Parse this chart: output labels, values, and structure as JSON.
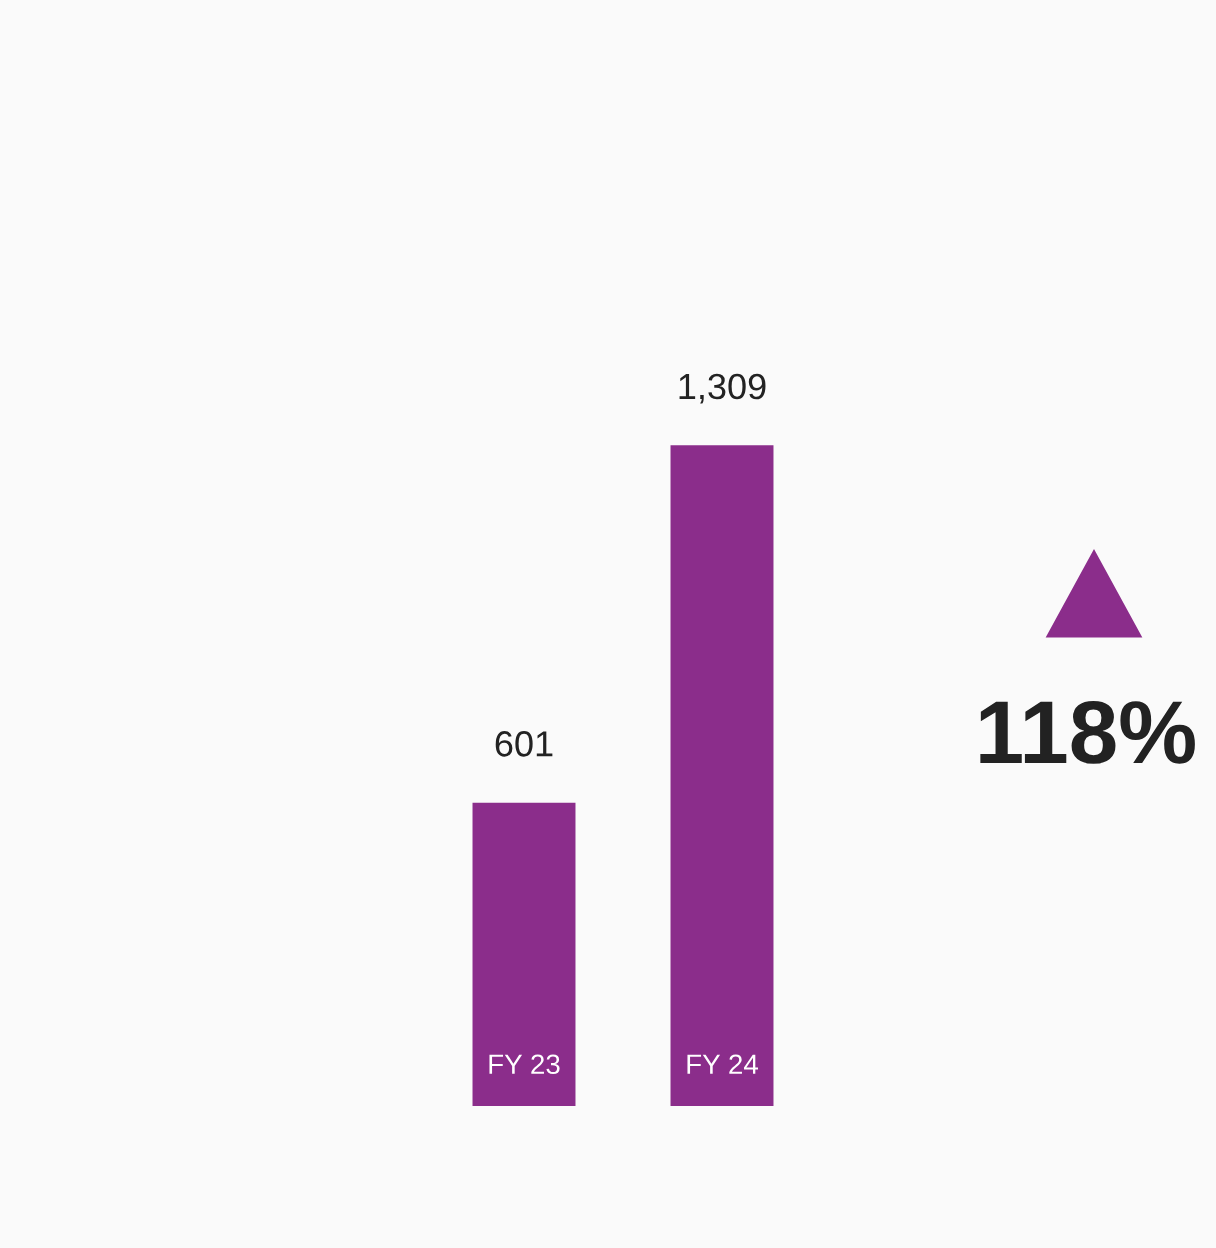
{
  "chart_data": {
    "type": "bar",
    "categories": [
      "FY 23",
      "FY 24"
    ],
    "values": [
      601,
      1309
    ],
    "color": "#8b2d8b",
    "value_labels": [
      "601",
      "1,309"
    ],
    "annotations": [
      "118%"
    ]
  }
}
